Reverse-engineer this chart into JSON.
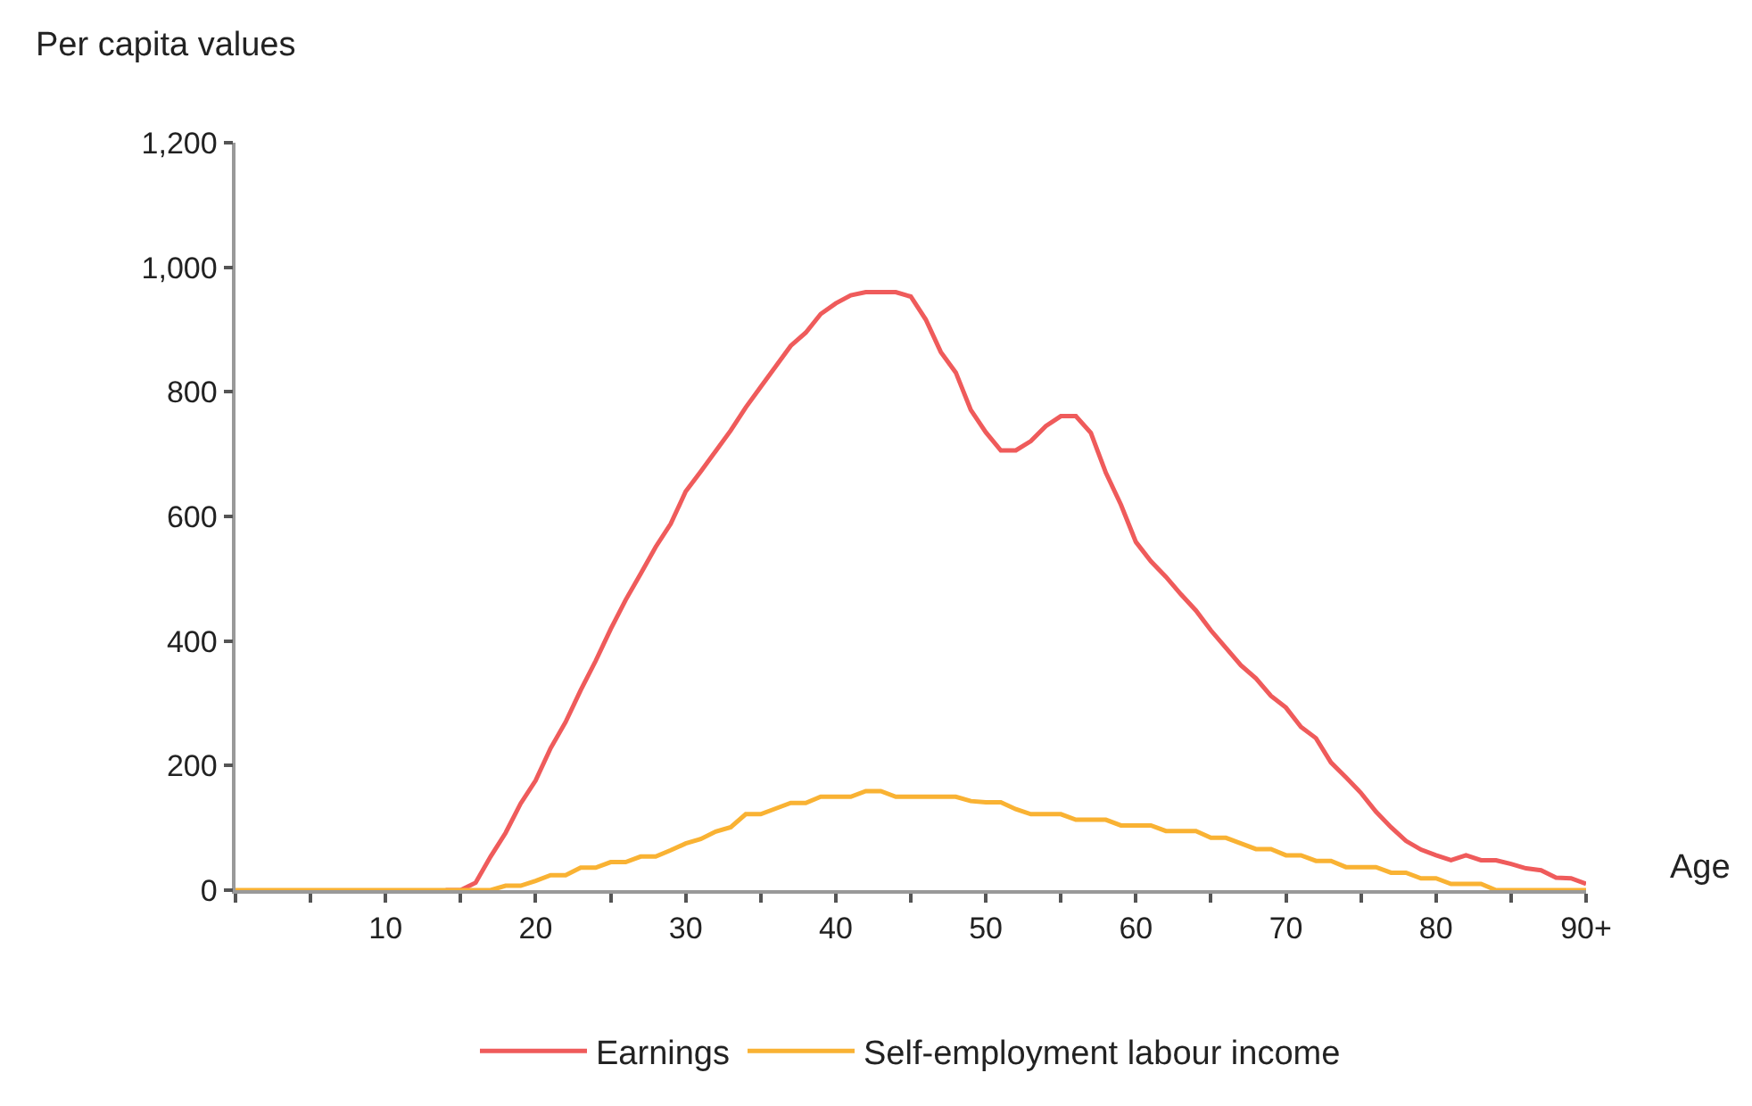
{
  "chart_data": {
    "type": "line",
    "xlabel": "Age",
    "ylabel": "Per capita values",
    "x": [
      0,
      1,
      2,
      3,
      4,
      5,
      6,
      7,
      8,
      9,
      10,
      11,
      12,
      13,
      14,
      15,
      16,
      17,
      18,
      19,
      20,
      21,
      22,
      23,
      24,
      25,
      26,
      27,
      28,
      29,
      30,
      31,
      32,
      33,
      34,
      35,
      36,
      37,
      38,
      39,
      40,
      41,
      42,
      43,
      44,
      45,
      46,
      47,
      48,
      49,
      50,
      51,
      52,
      53,
      54,
      55,
      56,
      57,
      58,
      59,
      60,
      61,
      62,
      63,
      64,
      65,
      66,
      67,
      68,
      69,
      70,
      71,
      72,
      73,
      74,
      75,
      76,
      77,
      78,
      79,
      80,
      81,
      82,
      83,
      84,
      85,
      86,
      87,
      88,
      89,
      90
    ],
    "series": [
      {
        "name": "Earnings",
        "color": "#ef5b5b",
        "values": [
          null,
          null,
          null,
          null,
          null,
          null,
          null,
          null,
          null,
          null,
          null,
          null,
          null,
          null,
          0,
          0,
          12,
          54,
          92,
          139,
          176,
          228,
          270,
          321,
          368,
          419,
          466,
          508,
          551,
          588,
          640,
          672,
          705,
          738,
          775,
          808,
          841,
          874,
          895,
          925,
          942,
          955,
          960,
          960,
          960,
          953,
          916,
          864,
          831,
          771,
          735,
          706,
          706,
          721,
          745,
          761,
          761,
          734,
          670,
          619,
          559,
          528,
          503,
          475,
          449,
          417,
          389,
          361,
          340,
          312,
          293,
          262,
          244,
          205,
          181,
          156,
          126,
          101,
          79,
          65,
          56,
          48,
          56,
          48,
          48,
          42,
          35,
          32,
          20,
          19,
          10
        ]
      },
      {
        "name": "Self-employment labour income",
        "color": "#f9b233",
        "values": [
          0,
          0,
          0,
          0,
          0,
          0,
          0,
          0,
          0,
          0,
          0,
          0,
          0,
          0,
          0,
          0,
          0,
          0,
          7,
          7,
          15,
          24,
          24,
          36,
          36,
          45,
          45,
          54,
          54,
          64,
          75,
          82,
          94,
          101,
          122,
          122,
          131,
          140,
          140,
          150,
          150,
          150,
          159,
          159,
          150,
          150,
          150,
          150,
          150,
          143,
          141,
          141,
          130,
          122,
          122,
          122,
          113,
          113,
          113,
          104,
          104,
          104,
          95,
          95,
          95,
          84,
          84,
          75,
          66,
          66,
          56,
          56,
          47,
          47,
          37,
          37,
          37,
          28,
          28,
          19,
          19,
          10,
          10,
          10,
          0,
          0,
          0,
          0,
          0,
          0,
          0
        ]
      }
    ],
    "xlim": [
      0,
      90
    ],
    "ylim": [
      0,
      1200
    ],
    "xticks": [
      {
        "value": 0,
        "label": null
      },
      {
        "value": 5,
        "label": null
      },
      10,
      {
        "value": 15,
        "label": null
      },
      20,
      {
        "value": 25,
        "label": null
      },
      30,
      {
        "value": 35,
        "label": null
      },
      40,
      {
        "value": 45,
        "label": null
      },
      50,
      {
        "value": 55,
        "label": null
      },
      60,
      {
        "value": 65,
        "label": null
      },
      70,
      {
        "value": 75,
        "label": null
      },
      80,
      {
        "value": 85,
        "label": null
      },
      {
        "value": 90,
        "label": "90+"
      }
    ],
    "yticks": [
      0,
      200,
      400,
      600,
      800,
      {
        "value": 1000,
        "label": "1,000"
      },
      {
        "value": 1200,
        "label": "1,200"
      }
    ],
    "grid": false,
    "legend": "bottom",
    "marker": "none",
    "line_style": "solid"
  }
}
